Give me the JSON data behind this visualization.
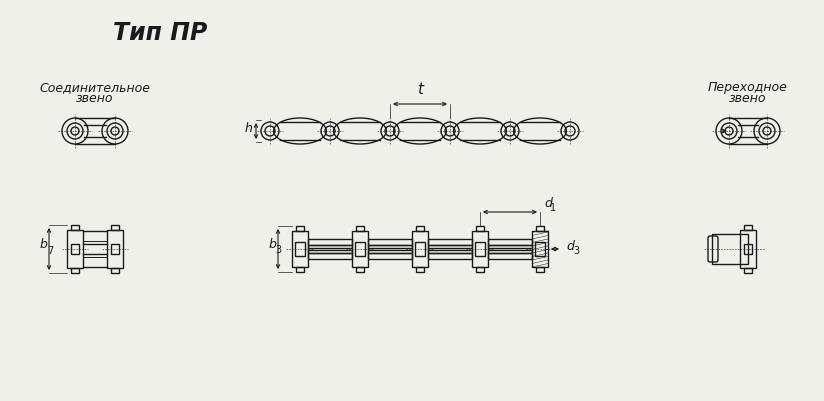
{
  "title": "Тип ПР",
  "bg_color": "#f0f0eb",
  "line_color": "#1a1a1a",
  "label_soedinitelnoe_line1": "Соединительное",
  "label_soedinitelnoe_line2": "звено",
  "label_perehodnoe_line1": "Переходное",
  "label_perehodnoe_line2": "звено",
  "label_t": "t",
  "label_h": "h",
  "label_b3": "b",
  "label_b3_sub": "3",
  "label_b7": "b",
  "label_b7_sub": "7",
  "label_d1": "d",
  "label_d1_sub": "1",
  "label_d3": "d",
  "label_d3_sub": "3"
}
